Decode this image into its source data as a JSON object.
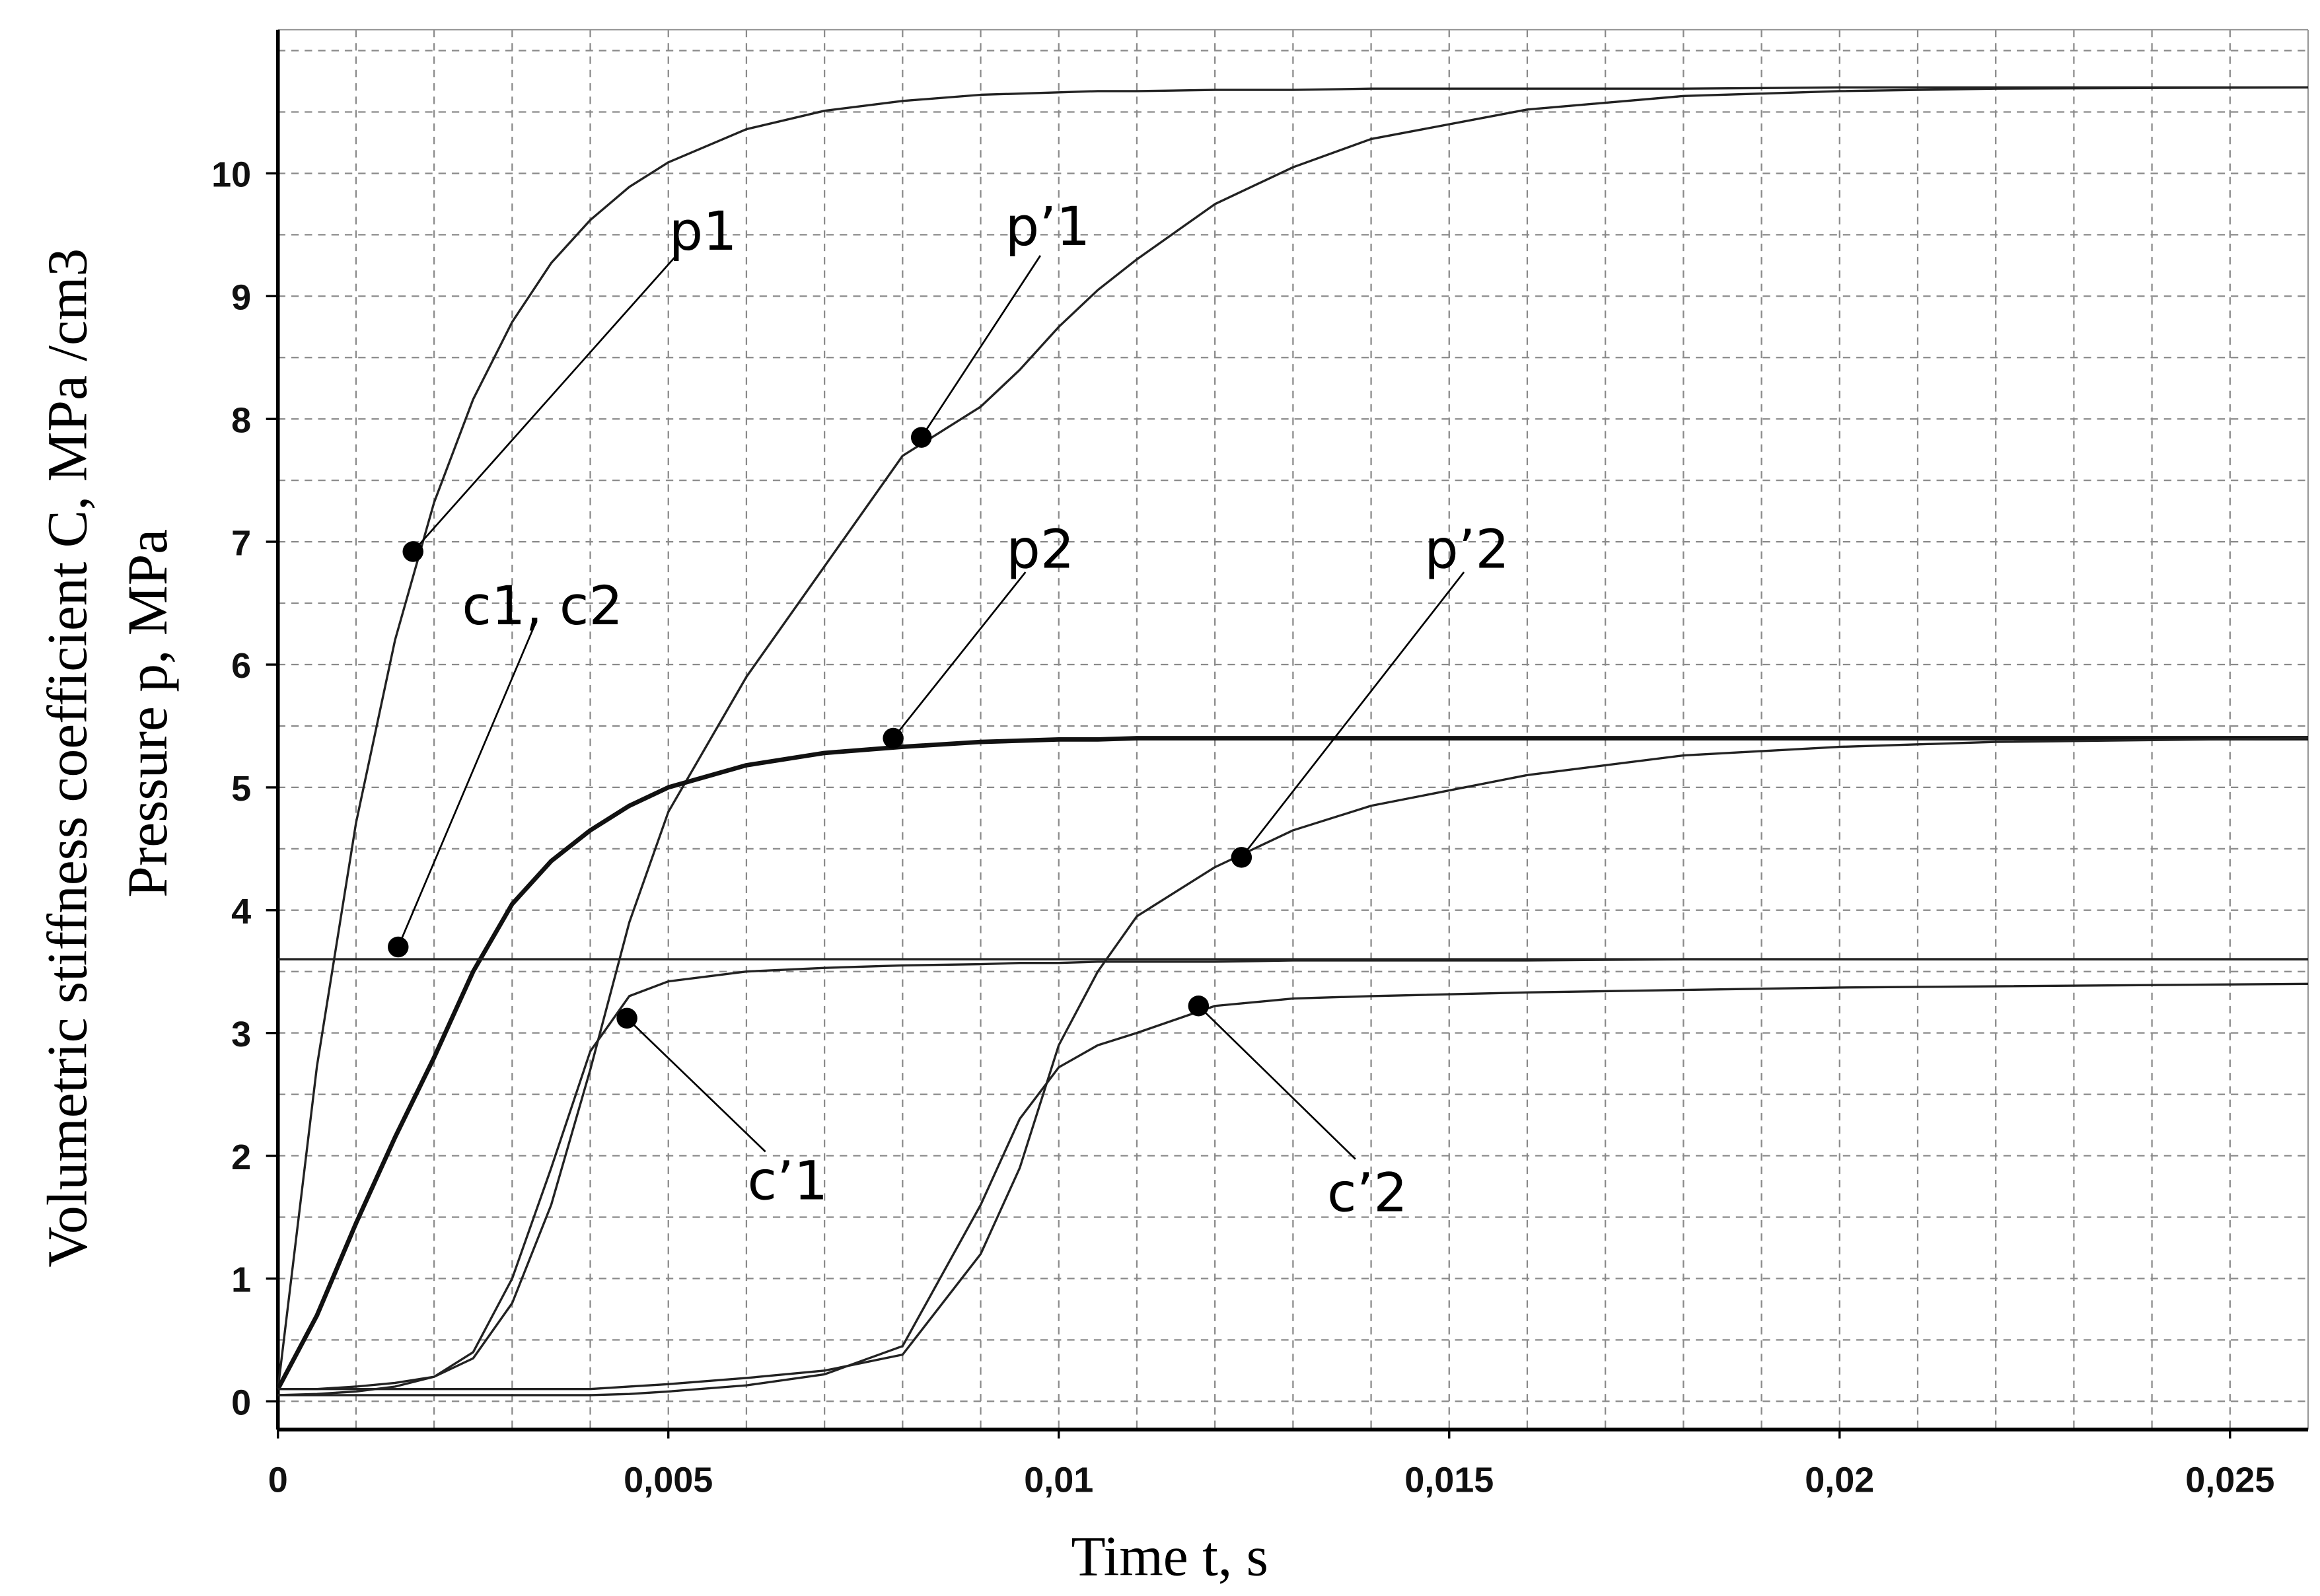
{
  "chart_data": {
    "type": "line",
    "x_label": "Time t, s",
    "y_labels": [
      "Volumetric stiffness coefficient C, MPa /cm3",
      "Pressure p, MPa"
    ],
    "x": [
      0,
      0.0005,
      0.001,
      0.0015,
      0.002,
      0.0025,
      0.003,
      0.0035,
      0.004,
      0.0045,
      0.005,
      0.006,
      0.007,
      0.008,
      0.009,
      0.0095,
      0.01,
      0.0105,
      0.011,
      0.012,
      0.013,
      0.014,
      0.016,
      0.018,
      0.02,
      0.022,
      0.026
    ],
    "series": [
      {
        "name": "p1",
        "color": "#222222",
        "width": 1.5,
        "marker": {
          "x": 0.00173,
          "y": 6.92
        },
        "values": [
          0.1,
          2.73,
          4.71,
          6.2,
          7.32,
          8.16,
          8.79,
          9.27,
          9.62,
          9.89,
          10.09,
          10.36,
          10.51,
          10.59,
          10.64,
          10.65,
          10.66,
          10.67,
          10.67,
          10.68,
          10.68,
          10.69,
          10.69,
          10.69,
          10.7,
          10.7,
          10.7
        ]
      },
      {
        "name": "p’1",
        "color": "#222222",
        "width": 1.5,
        "marker": {
          "x": 0.00824,
          "y": 7.85
        },
        "values": [
          0.1,
          0.1,
          0.12,
          0.15,
          0.2,
          0.35,
          0.8,
          1.6,
          2.7,
          3.9,
          4.8,
          5.9,
          6.8,
          7.7,
          8.1,
          8.4,
          8.75,
          9.05,
          9.3,
          9.75,
          10.05,
          10.28,
          10.52,
          10.63,
          10.67,
          10.69,
          10.7
        ]
      },
      {
        "name": "p2",
        "color": "#111111",
        "width": 3,
        "marker": {
          "x": 0.00788,
          "y": 5.4
        },
        "values": [
          0.1,
          0.7,
          1.45,
          2.15,
          2.8,
          3.5,
          4.05,
          4.4,
          4.65,
          4.85,
          5.0,
          5.18,
          5.28,
          5.33,
          5.37,
          5.38,
          5.39,
          5.39,
          5.4,
          5.4,
          5.4,
          5.4,
          5.4,
          5.4,
          5.4,
          5.4,
          5.4
        ]
      },
      {
        "name": "p’2",
        "color": "#222222",
        "width": 1.5,
        "marker": {
          "x": 0.01234,
          "y": 4.43
        },
        "values": [
          0.1,
          0.1,
          0.1,
          0.1,
          0.1,
          0.1,
          0.1,
          0.1,
          0.1,
          0.12,
          0.14,
          0.19,
          0.25,
          0.38,
          1.2,
          1.9,
          2.9,
          3.5,
          3.95,
          4.35,
          4.65,
          4.85,
          5.1,
          5.26,
          5.33,
          5.37,
          5.4
        ]
      },
      {
        "name": "c1, c2",
        "color": "#222222",
        "width": 1.5,
        "marker": {
          "x": 0.00154,
          "y": 3.7
        },
        "values": [
          3.6,
          3.6,
          3.6,
          3.6,
          3.6,
          3.6,
          3.6,
          3.6,
          3.6,
          3.6,
          3.6,
          3.6,
          3.6,
          3.6,
          3.6,
          3.6,
          3.6,
          3.6,
          3.6,
          3.6,
          3.6,
          3.6,
          3.6,
          3.6,
          3.6,
          3.6,
          3.6
        ]
      },
      {
        "name": "c’1",
        "color": "#222222",
        "width": 1.5,
        "marker": {
          "x": 0.00447,
          "y": 3.12
        },
        "values": [
          0.05,
          0.06,
          0.08,
          0.12,
          0.2,
          0.4,
          1.0,
          1.9,
          2.85,
          3.3,
          3.42,
          3.5,
          3.53,
          3.55,
          3.56,
          3.57,
          3.57,
          3.58,
          3.58,
          3.58,
          3.59,
          3.59,
          3.59,
          3.6,
          3.6,
          3.6,
          3.6
        ]
      },
      {
        "name": "c’2",
        "color": "#222222",
        "width": 1.5,
        "marker": {
          "x": 0.01179,
          "y": 3.22
        },
        "values": [
          0.05,
          0.05,
          0.05,
          0.05,
          0.05,
          0.05,
          0.05,
          0.05,
          0.05,
          0.06,
          0.08,
          0.13,
          0.22,
          0.45,
          1.6,
          2.3,
          2.72,
          2.9,
          3.0,
          3.22,
          3.28,
          3.3,
          3.33,
          3.35,
          3.37,
          3.38,
          3.4
        ]
      }
    ],
    "xlim": [
      0,
      0.026
    ],
    "ylim": [
      -0.23,
      11.17
    ],
    "xticks": [
      0,
      {
        "value": 0.005,
        "label": "0,005"
      },
      {
        "value": 0.01,
        "label": "0,01"
      },
      {
        "value": 0.015,
        "label": "0,015"
      },
      {
        "value": 0.02,
        "label": "0,02"
      },
      {
        "value": 0.025,
        "label": "0,025"
      }
    ],
    "yticks": [
      0,
      1,
      2,
      3,
      4,
      5,
      6,
      7,
      8,
      9,
      10
    ],
    "grid": true,
    "x_grid_step": 0.001,
    "y_grid_step": 0.5
  }
}
